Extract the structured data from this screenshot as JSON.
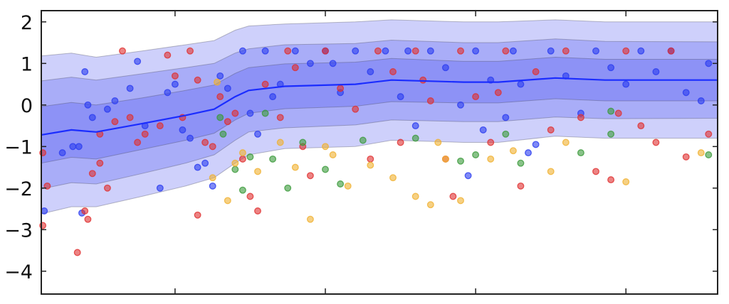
{
  "chart_data": {
    "type": "scatter",
    "title": "",
    "xlabel": "",
    "ylabel": "",
    "xlim": [
      0.11,
      4.61
    ],
    "ylim": [
      -4.55,
      2.27
    ],
    "xticks": [
      1,
      2,
      3,
      4
    ],
    "xtick_labels": [
      "",
      "",
      "",
      ""
    ],
    "yticks": [
      2,
      1,
      0,
      -1,
      -2,
      -3,
      -4
    ],
    "ytick_labels": [
      "2",
      "1",
      "0",
      "−1",
      "−2",
      "−3",
      "−4"
    ],
    "grid": false,
    "mean_line": {
      "color": "#1a2cff",
      "x": [
        0.11,
        0.31,
        0.475,
        0.78,
        1.07,
        1.26,
        1.4,
        1.49,
        1.73,
        2.2,
        2.44,
        2.92,
        3.15,
        3.53,
        3.86,
        4.61
      ],
      "y": [
        -0.72,
        -0.6,
        -0.65,
        -0.45,
        -0.25,
        -0.1,
        0.2,
        0.35,
        0.45,
        0.5,
        0.6,
        0.55,
        0.55,
        0.65,
        0.6,
        0.6
      ]
    },
    "bands": {
      "color": "#3b45f0",
      "halfwidths": [
        {
          "name": "outer",
          "values": [
            1.9,
            1.85,
            1.8,
            1.75,
            1.7,
            1.65,
            1.6,
            1.55,
            1.5,
            1.5,
            1.45,
            1.45,
            1.45,
            1.4,
            1.4,
            1.4
          ]
        },
        {
          "name": "middle",
          "values": [
            1.3,
            1.27,
            1.25,
            1.2,
            1.15,
            1.1,
            1.05,
            1.0,
            1.0,
            0.98,
            0.96,
            0.95,
            0.95,
            0.94,
            0.93,
            0.92
          ]
        },
        {
          "name": "inner",
          "values": [
            0.68,
            0.66,
            0.65,
            0.62,
            0.6,
            0.58,
            0.56,
            0.55,
            0.54,
            0.53,
            0.52,
            0.5,
            0.5,
            0.5,
            0.5,
            0.5
          ]
        }
      ]
    },
    "series": [
      {
        "name": "blue",
        "color": "#2a3cf0",
        "points": [
          [
            0.13,
            -2.55
          ],
          [
            0.38,
            -2.6
          ],
          [
            0.4,
            0.8
          ],
          [
            0.42,
            0.0
          ],
          [
            0.45,
            -0.3
          ],
          [
            0.32,
            -1.0
          ],
          [
            0.36,
            -1.0
          ],
          [
            0.25,
            -1.15
          ],
          [
            0.55,
            -0.1
          ],
          [
            0.6,
            0.1
          ],
          [
            0.75,
            1.05
          ],
          [
            0.95,
            0.3
          ],
          [
            1.0,
            0.5
          ],
          [
            1.05,
            -0.6
          ],
          [
            1.1,
            -0.8
          ],
          [
            1.2,
            -1.4
          ],
          [
            1.25,
            -1.95
          ],
          [
            0.9,
            -2.0
          ],
          [
            1.3,
            0.7
          ],
          [
            1.35,
            0.4
          ],
          [
            1.5,
            -0.2
          ],
          [
            1.45,
            1.3
          ],
          [
            1.6,
            1.3
          ],
          [
            1.7,
            0.5
          ],
          [
            1.8,
            1.3
          ],
          [
            1.9,
            1.0
          ],
          [
            2.0,
            1.3
          ],
          [
            2.1,
            0.3
          ],
          [
            2.2,
            1.3
          ],
          [
            2.3,
            0.8
          ],
          [
            2.4,
            1.3
          ],
          [
            2.5,
            0.2
          ],
          [
            2.6,
            -0.5
          ],
          [
            2.7,
            1.3
          ],
          [
            2.8,
            0.9
          ],
          [
            2.9,
            0.0
          ],
          [
            3.0,
            1.3
          ],
          [
            3.1,
            0.6
          ],
          [
            3.2,
            -0.3
          ],
          [
            3.25,
            1.3
          ],
          [
            3.3,
            0.5
          ],
          [
            3.35,
            -1.15
          ],
          [
            3.4,
            -0.95
          ],
          [
            3.5,
            1.3
          ],
          [
            3.6,
            0.7
          ],
          [
            3.7,
            -0.2
          ],
          [
            3.8,
            1.3
          ],
          [
            3.9,
            0.9
          ],
          [
            4.0,
            0.5
          ],
          [
            4.1,
            1.3
          ],
          [
            4.2,
            0.8
          ],
          [
            4.3,
            1.3
          ],
          [
            4.4,
            0.3
          ],
          [
            4.5,
            0.1
          ],
          [
            4.55,
            1.0
          ],
          [
            2.95,
            -1.7
          ],
          [
            1.55,
            -0.7
          ],
          [
            1.65,
            0.2
          ],
          [
            0.7,
            0.4
          ],
          [
            0.8,
            -0.5
          ],
          [
            1.15,
            -1.5
          ],
          [
            2.05,
            1.0
          ],
          [
            2.55,
            1.3
          ],
          [
            3.05,
            -0.6
          ]
        ]
      },
      {
        "name": "red",
        "color": "#e03030",
        "points": [
          [
            0.12,
            -2.9
          ],
          [
            0.15,
            -1.95
          ],
          [
            0.12,
            -1.15
          ],
          [
            0.35,
            -3.55
          ],
          [
            0.4,
            -2.55
          ],
          [
            0.42,
            -2.75
          ],
          [
            0.45,
            -1.65
          ],
          [
            0.5,
            -1.4
          ],
          [
            0.55,
            -2.0
          ],
          [
            0.65,
            1.3
          ],
          [
            0.5,
            -0.7
          ],
          [
            0.6,
            -0.4
          ],
          [
            0.7,
            -0.3
          ],
          [
            0.8,
            -0.7
          ],
          [
            0.9,
            -0.5
          ],
          [
            0.95,
            1.2
          ],
          [
            1.0,
            0.7
          ],
          [
            1.05,
            -0.3
          ],
          [
            1.1,
            1.3
          ],
          [
            1.15,
            0.6
          ],
          [
            1.2,
            -0.9
          ],
          [
            1.3,
            0.2
          ],
          [
            1.35,
            -0.4
          ],
          [
            1.4,
            -0.2
          ],
          [
            1.45,
            -1.3
          ],
          [
            1.5,
            -2.2
          ],
          [
            1.55,
            -2.55
          ],
          [
            1.6,
            0.5
          ],
          [
            1.7,
            -0.3
          ],
          [
            1.75,
            1.3
          ],
          [
            1.8,
            0.9
          ],
          [
            1.85,
            -1.0
          ],
          [
            1.9,
            -1.7
          ],
          [
            2.0,
            1.3
          ],
          [
            2.1,
            0.4
          ],
          [
            2.2,
            -0.1
          ],
          [
            2.3,
            -1.3
          ],
          [
            2.35,
            1.3
          ],
          [
            2.45,
            0.8
          ],
          [
            2.5,
            -0.9
          ],
          [
            2.6,
            1.3
          ],
          [
            2.7,
            0.1
          ],
          [
            2.8,
            -1.3
          ],
          [
            2.85,
            -2.2
          ],
          [
            2.9,
            1.3
          ],
          [
            3.0,
            0.2
          ],
          [
            3.1,
            -0.9
          ],
          [
            3.2,
            1.3
          ],
          [
            3.3,
            -1.95
          ],
          [
            3.4,
            0.8
          ],
          [
            3.5,
            -0.6
          ],
          [
            3.6,
            1.3
          ],
          [
            3.7,
            -0.3
          ],
          [
            3.8,
            -1.6
          ],
          [
            3.9,
            -1.8
          ],
          [
            4.0,
            1.3
          ],
          [
            4.1,
            -0.5
          ],
          [
            4.2,
            -0.9
          ],
          [
            4.3,
            1.3
          ],
          [
            4.4,
            -1.25
          ],
          [
            4.55,
            -0.7
          ],
          [
            1.15,
            -2.65
          ],
          [
            0.75,
            -0.9
          ],
          [
            1.25,
            -1.0
          ],
          [
            2.65,
            0.6
          ],
          [
            3.15,
            0.3
          ],
          [
            3.95,
            -0.2
          ]
        ]
      },
      {
        "name": "green",
        "color": "#3a9a3a",
        "points": [
          [
            1.3,
            -0.3
          ],
          [
            1.32,
            -0.7
          ],
          [
            1.4,
            -1.55
          ],
          [
            1.45,
            -2.05
          ],
          [
            1.5,
            -1.25
          ],
          [
            1.6,
            -0.2
          ],
          [
            1.65,
            -1.3
          ],
          [
            1.75,
            -2.0
          ],
          [
            1.85,
            -0.9
          ],
          [
            2.0,
            -1.55
          ],
          [
            2.1,
            -1.9
          ],
          [
            2.25,
            -0.85
          ],
          [
            2.6,
            -0.8
          ],
          [
            2.9,
            -1.35
          ],
          [
            3.0,
            -1.2
          ],
          [
            3.2,
            -0.7
          ],
          [
            3.3,
            -1.4
          ],
          [
            3.7,
            -1.15
          ],
          [
            3.9,
            -0.15
          ],
          [
            3.9,
            -0.7
          ],
          [
            4.55,
            -1.2
          ]
        ]
      },
      {
        "name": "orange",
        "color": "#f0b030",
        "points": [
          [
            1.25,
            -1.75
          ],
          [
            1.28,
            0.55
          ],
          [
            1.35,
            -2.3
          ],
          [
            1.4,
            -1.4
          ],
          [
            1.45,
            -1.15
          ],
          [
            1.55,
            -1.6
          ],
          [
            1.7,
            -0.9
          ],
          [
            1.8,
            -1.5
          ],
          [
            1.9,
            -2.75
          ],
          [
            2.0,
            -1.0
          ],
          [
            2.05,
            -1.2
          ],
          [
            2.15,
            -1.95
          ],
          [
            2.3,
            -1.45
          ],
          [
            2.45,
            -1.75
          ],
          [
            2.6,
            -2.2
          ],
          [
            2.7,
            -2.4
          ],
          [
            2.8,
            -1.3
          ],
          [
            2.9,
            -2.3
          ],
          [
            3.1,
            -1.3
          ],
          [
            3.25,
            -1.1
          ],
          [
            3.5,
            -1.6
          ],
          [
            3.6,
            -0.9
          ],
          [
            4.0,
            -1.85
          ],
          [
            4.5,
            -1.15
          ],
          [
            2.75,
            -0.9
          ]
        ]
      }
    ]
  }
}
